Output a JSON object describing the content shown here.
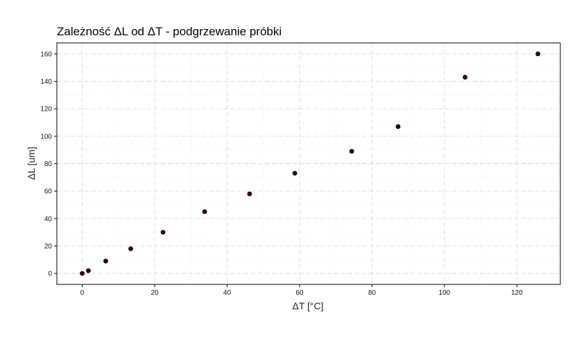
{
  "chart_data": {
    "type": "scatter",
    "title": "Zależność ΔL od ΔT - podgrzewanie próbki",
    "xlabel": "ΔT [°C]",
    "ylabel": "ΔL [um]",
    "xlim": [
      -7,
      132
    ],
    "ylim": [
      -8,
      168
    ],
    "x_ticks": [
      0,
      20,
      40,
      60,
      80,
      100,
      120
    ],
    "y_ticks": [
      0,
      20,
      40,
      60,
      80,
      100,
      120,
      140,
      160
    ],
    "x_tick_labels": [
      "0",
      "20",
      "40",
      "60",
      "80",
      "100",
      "120"
    ],
    "y_tick_labels": [
      "0",
      "20",
      "40",
      "60",
      "80",
      "100",
      "120",
      "140",
      "160"
    ],
    "grid": true,
    "points_color": "#3a0000",
    "x": [
      0,
      1.7,
      6.5,
      13.4,
      22.3,
      33.8,
      46.2,
      58.7,
      74.4,
      87.2,
      105.7,
      125.8
    ],
    "y": [
      0,
      2,
      9,
      18,
      30,
      45,
      58,
      73,
      89,
      107,
      143,
      160
    ]
  }
}
